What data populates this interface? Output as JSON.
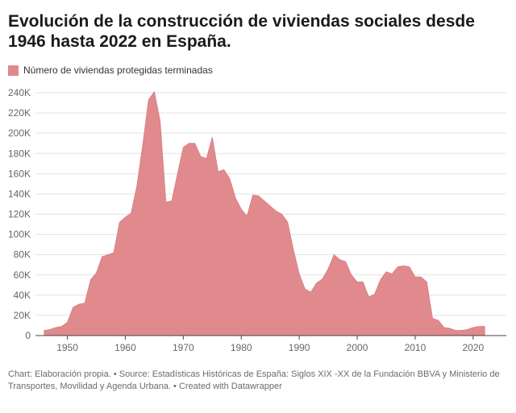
{
  "title": "Evolución de la construcción de viviendas sociales desde 1946 hasta 2022 en España.",
  "legend": {
    "label": "Número de viviendas protegidas terminadas",
    "color": "#e08a8d"
  },
  "source": "Chart: Elaboración propia. • Source: Estadísticas Históricas de España: Siglos XIX -XX de la Fundación BBVA y Ministerio de Transportes, Movilidad y Agenda Urbana. • Created with Datawrapper",
  "chart_data": {
    "type": "area",
    "title": "Evolución de la construcción de viviendas sociales desde 1946 hasta 2022 en España.",
    "xlabel": "",
    "ylabel": "",
    "xlim": [
      1944.5,
      2023.5
    ],
    "ylim": [
      0,
      240000
    ],
    "grid": true,
    "legend_position": "top-left",
    "x_ticks": [
      1950,
      1960,
      1970,
      1980,
      1990,
      2000,
      2010,
      2020
    ],
    "y_ticks": [
      0,
      20000,
      40000,
      60000,
      80000,
      100000,
      120000,
      140000,
      160000,
      180000,
      200000,
      220000,
      240000
    ],
    "y_tick_labels": [
      "0",
      "20K",
      "40K",
      "60K",
      "80K",
      "100K",
      "120K",
      "140K",
      "160K",
      "180K",
      "200K",
      "220K",
      "240K"
    ],
    "series": [
      {
        "name": "Número de viviendas protegidas terminadas",
        "color": "#e08a8d",
        "x": [
          1946,
          1947,
          1948,
          1949,
          1950,
          1951,
          1952,
          1953,
          1954,
          1955,
          1956,
          1957,
          1958,
          1959,
          1960,
          1961,
          1962,
          1963,
          1964,
          1965,
          1966,
          1967,
          1968,
          1969,
          1970,
          1971,
          1972,
          1973,
          1974,
          1975,
          1976,
          1977,
          1978,
          1979,
          1980,
          1981,
          1982,
          1983,
          1984,
          1985,
          1986,
          1987,
          1988,
          1989,
          1990,
          1991,
          1992,
          1993,
          1994,
          1995,
          1996,
          1997,
          1998,
          1999,
          2000,
          2001,
          2002,
          2003,
          2004,
          2005,
          2006,
          2007,
          2008,
          2009,
          2010,
          2011,
          2012,
          2013,
          2014,
          2015,
          2016,
          2017,
          2018,
          2019,
          2020,
          2021,
          2022
        ],
        "values": [
          5000,
          6000,
          8000,
          9000,
          13000,
          28000,
          31000,
          32000,
          55000,
          62000,
          78000,
          80000,
          82000,
          112000,
          117000,
          121000,
          148000,
          188000,
          233000,
          241000,
          212000,
          132000,
          133000,
          160000,
          186000,
          190000,
          190000,
          177000,
          175000,
          196000,
          162000,
          164000,
          155000,
          136000,
          125000,
          118000,
          139000,
          138000,
          133000,
          128000,
          123000,
          120000,
          112000,
          85000,
          61000,
          46000,
          43000,
          52000,
          56000,
          66000,
          80000,
          75000,
          73000,
          60000,
          53000,
          53000,
          38000,
          41000,
          55000,
          63000,
          61000,
          68000,
          69000,
          68000,
          58000,
          58000,
          53000,
          17000,
          15000,
          8000,
          7000,
          5000,
          5000,
          6000,
          8000,
          9000,
          9000
        ]
      }
    ]
  }
}
